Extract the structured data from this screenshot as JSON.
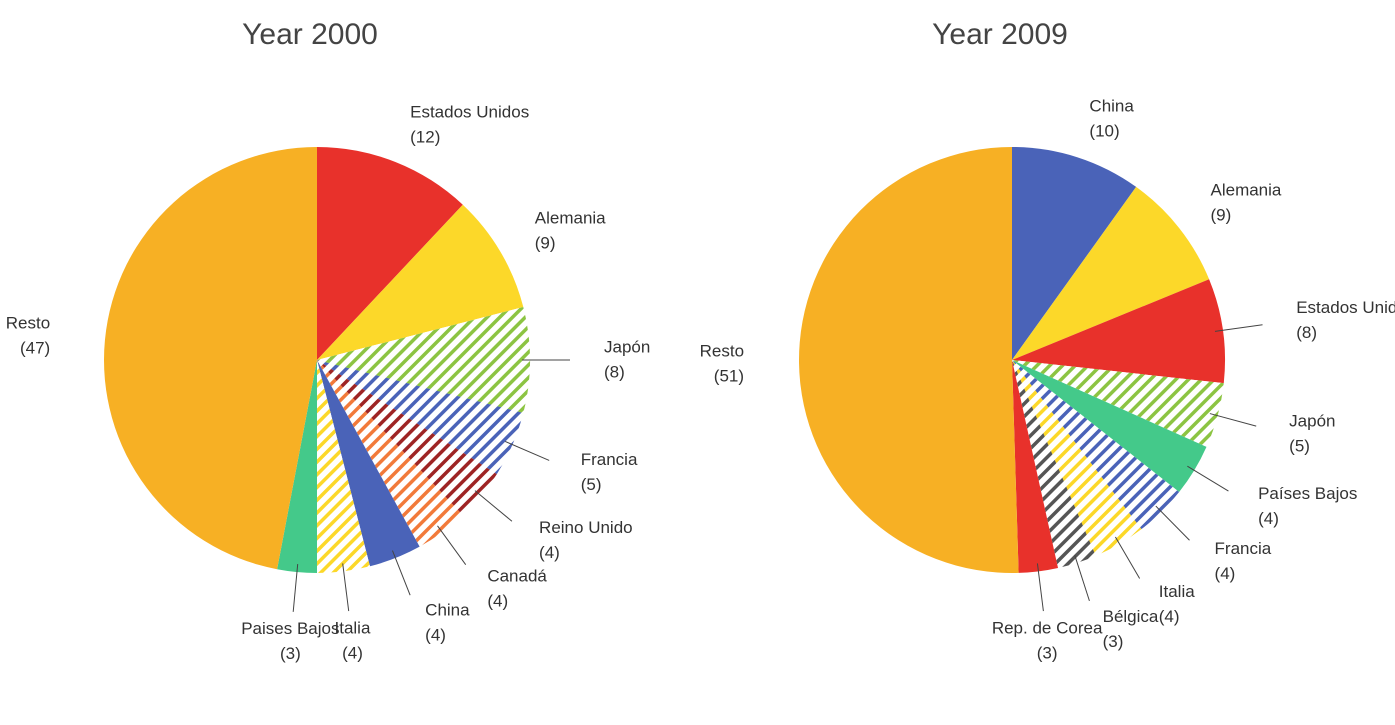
{
  "chart_data": [
    {
      "type": "pie",
      "title": "Year 2000",
      "categories": [
        "Estados Unidos",
        "Alemania",
        "Japón",
        "Francia",
        "Reino Unido",
        "Canadá",
        "China",
        "Italia",
        "Paises Bajos",
        "Resto"
      ],
      "values": [
        12,
        9,
        8,
        5,
        4,
        4,
        4,
        4,
        3,
        47
      ],
      "value_labels": [
        "(12)",
        "(9)",
        "(8)",
        "(5)",
        "(4)",
        "(4)",
        "(4)",
        "(4)",
        "(3)",
        "(47)"
      ],
      "colors": [
        "#e8312b",
        "#fcd829",
        "#8cc442",
        "#4a63b8",
        "#9e2424",
        "#f27a3a",
        "#4a63b8",
        "#fcd829",
        "#44c98a",
        "#f7b024"
      ],
      "patterns": [
        "solid",
        "solid",
        "hatch",
        "hatch",
        "hatch",
        "hatch",
        "solid",
        "hatch",
        "solid",
        "solid"
      ]
    },
    {
      "type": "pie",
      "title": "Year 2009",
      "categories": [
        "China",
        "Alemania",
        "Estados Unidos",
        "Japón",
        "Países Bajos",
        "Francia",
        "Italia",
        "Bélgica",
        "Rep. de Corea",
        "Resto"
      ],
      "values": [
        10,
        9,
        8,
        5,
        4,
        4,
        4,
        3,
        3,
        51
      ],
      "value_labels": [
        "(10)",
        "(9)",
        "(8)",
        "(5)",
        "(4)",
        "(4)",
        "(4)",
        "(3)",
        "(3)",
        "(51)"
      ],
      "colors": [
        "#4a63b8",
        "#fcd829",
        "#e8312b",
        "#8cc442",
        "#44c98a",
        "#4a63b8",
        "#fcd829",
        "#555555",
        "#e8312b",
        "#f7b024"
      ],
      "patterns": [
        "solid",
        "solid",
        "solid",
        "hatch",
        "solid",
        "hatch",
        "hatch",
        "hatch",
        "solid",
        "solid"
      ]
    }
  ]
}
